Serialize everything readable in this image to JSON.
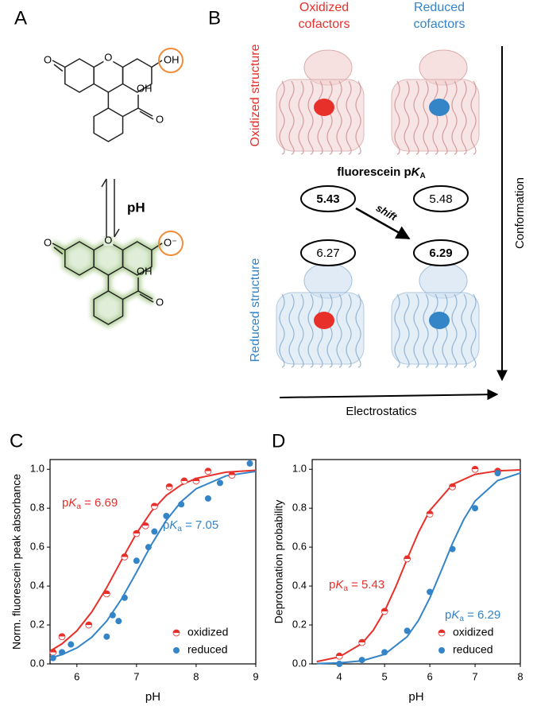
{
  "panel_labels": [
    "A",
    "B",
    "C",
    "D"
  ],
  "structures": {
    "top": {
      "carbonyl": "O",
      "ring": "O",
      "phenol": "OH",
      "acid_oh": "OH",
      "acid_o": "O"
    },
    "bottom": {
      "carbonyl": "O",
      "ring": "O",
      "phenol": "O⁻",
      "acid_oh": "OH",
      "acid_o": "O"
    },
    "equilibrium_label": "pH"
  },
  "panel_b": {
    "columns": [
      {
        "lines": [
          "Oxidized",
          "cofactors"
        ],
        "color": "#e8302b"
      },
      {
        "lines": [
          "Reduced",
          "cofactors"
        ],
        "color": "#3484c8"
      }
    ],
    "rows": [
      {
        "text": "Oxidized structure",
        "color": "#e8302b"
      },
      {
        "text": "Reduced structure",
        "color": "#3484c8"
      }
    ],
    "pka_title": {
      "text": "fluorescein p",
      "italic": "K",
      "sub": "A"
    },
    "pka_values": [
      [
        5.43,
        5.48
      ],
      [
        6.27,
        6.29
      ]
    ],
    "shift_label": "shift",
    "vertical_axis": "Conformation",
    "horizontal_axis": "Electrostatics"
  },
  "chart_data": [
    {
      "type": "scatter",
      "xlabel": "pH",
      "ylabel": "Norm. fluorescein peak absorbance",
      "xlim": [
        5.55,
        9
      ],
      "xticks": [
        6,
        7,
        8,
        9
      ],
      "ylim": [
        0,
        1.05
      ],
      "yticks": [
        {
          "value": 0,
          "label": "0.0"
        },
        0.2,
        0.4,
        0.6,
        0.8,
        {
          "value": 1,
          "label": "1.0"
        }
      ],
      "legend": "lower right",
      "series": [
        {
          "name": "oxidized",
          "color": "#e8302b",
          "marker": "half",
          "x": [
            5.6,
            5.75,
            6.2,
            6.5,
            6.8,
            7.0,
            7.15,
            7.3,
            7.55,
            7.8,
            8.0,
            8.2,
            8.6
          ],
          "values": [
            0.06,
            0.14,
            0.2,
            0.36,
            0.55,
            0.67,
            0.71,
            0.81,
            0.91,
            0.94,
            0.94,
            0.99,
            0.97
          ]
        },
        {
          "name": "reduced",
          "color": "#3484c8",
          "marker": "filled",
          "x": [
            5.6,
            5.75,
            5.9,
            6.5,
            6.6,
            6.7,
            6.8,
            7.0,
            7.2,
            7.3,
            7.5,
            7.75,
            8.2,
            8.4,
            8.9
          ],
          "values": [
            0.03,
            0.06,
            0.1,
            0.14,
            0.25,
            0.22,
            0.34,
            0.53,
            0.6,
            0.68,
            0.76,
            0.82,
            0.85,
            0.93,
            1.03
          ]
        }
      ],
      "fits": [
        {
          "color": "#e8302b",
          "x": [
            5.6,
            5.75,
            6,
            6.25,
            6.5,
            6.75,
            7,
            7.25,
            7.5,
            7.75,
            8,
            8.5,
            9
          ],
          "values": [
            0.075,
            0.103,
            0.17,
            0.267,
            0.392,
            0.534,
            0.671,
            0.784,
            0.866,
            0.92,
            0.953,
            0.985,
            0.995
          ]
        },
        {
          "color": "#3484c8",
          "x": [
            5.6,
            5.75,
            6,
            6.25,
            6.5,
            6.75,
            7,
            7.25,
            7.5,
            7.75,
            8,
            8.5,
            9
          ],
          "values": [
            0.034,
            0.048,
            0.082,
            0.137,
            0.22,
            0.334,
            0.471,
            0.613,
            0.738,
            0.834,
            0.9,
            0.966,
            0.989
          ]
        }
      ],
      "annotations": [
        {
          "p": "p",
          "K": "K",
          "sub": "a",
          "rest": " = 6.69",
          "color": "#e8302b"
        },
        {
          "p": "p",
          "K": "K",
          "sub": "a",
          "rest": " = 7.05",
          "color": "#3484c8"
        }
      ]
    },
    {
      "type": "scatter",
      "xlabel": "pH",
      "ylabel": "Deprotonation probability",
      "xlim": [
        3.4,
        8
      ],
      "xticks": [
        4,
        5,
        6,
        7,
        8
      ],
      "ylim": [
        0,
        1.05
      ],
      "yticks": [
        {
          "value": 0,
          "label": "0.0"
        },
        0.2,
        0.4,
        0.6,
        0.8,
        {
          "value": 1,
          "label": "1.0"
        }
      ],
      "legend": "lower right",
      "series": [
        {
          "name": "oxidized",
          "color": "#e8302b",
          "marker": "half",
          "x": [
            4,
            4.5,
            5,
            5.5,
            6,
            6.5,
            7,
            7.5
          ],
          "values": [
            0.04,
            0.11,
            0.27,
            0.54,
            0.77,
            0.91,
            1.0,
            0.99
          ]
        },
        {
          "name": "reduced",
          "color": "#3484c8",
          "marker": "filled",
          "x": [
            4,
            4.5,
            5,
            5.5,
            6,
            6.5,
            7,
            7.5
          ],
          "values": [
            0.0,
            0.02,
            0.06,
            0.17,
            0.37,
            0.59,
            0.8,
            0.98
          ]
        }
      ],
      "fits": [
        {
          "color": "#e8302b",
          "x": [
            3.5,
            4,
            4.5,
            4.75,
            5,
            5.25,
            5.5,
            5.75,
            6,
            6.5,
            7,
            7.5,
            8
          ],
          "values": [
            0.0116,
            0.036,
            0.105,
            0.173,
            0.271,
            0.398,
            0.54,
            0.676,
            0.788,
            0.922,
            0.974,
            0.992,
            0.997
          ]
        },
        {
          "color": "#3484c8",
          "x": [
            3.5,
            4,
            4.5,
            5,
            5.5,
            5.75,
            6,
            6.25,
            6.5,
            6.75,
            7,
            7.5,
            8
          ],
          "values": [
            0.0016,
            0.0051,
            0.016,
            0.049,
            0.14,
            0.224,
            0.339,
            0.477,
            0.619,
            0.742,
            0.837,
            0.942,
            0.981
          ]
        }
      ],
      "annotations": [
        {
          "p": "p",
          "K": "K",
          "sub": "a",
          "rest": " = 5.43",
          "color": "#e8302b"
        },
        {
          "p": "p",
          "K": "K",
          "sub": "a",
          "rest": " = 6.29",
          "color": "#3484c8"
        }
      ]
    }
  ]
}
